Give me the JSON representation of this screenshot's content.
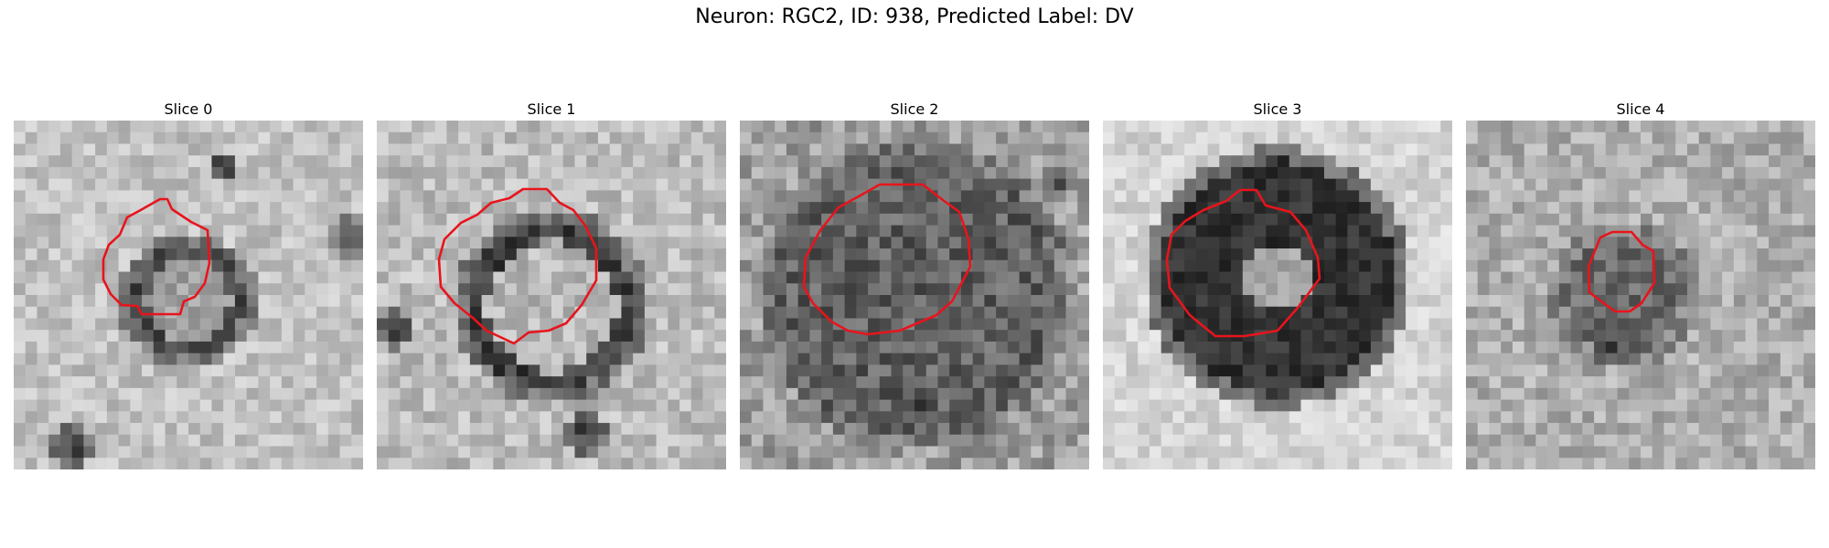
{
  "figure": {
    "suptitle": "Neuron: RGC2, ID: 938, Predicted Label: DV"
  },
  "colors": {
    "background": "#ffffff",
    "contour": "#e8141c",
    "colormap": "gray"
  },
  "panels": [
    {
      "title": "Slice 0",
      "content": "grayscale-microscopy-ring-cell",
      "roi_contour_color": "#e8141c"
    },
    {
      "title": "Slice 1",
      "content": "grayscale-microscopy-ring-cell-large",
      "roi_contour_color": "#e8141c"
    },
    {
      "title": "Slice 2",
      "content": "grayscale-microscopy-dark-cell",
      "roi_contour_color": "#e8141c"
    },
    {
      "title": "Slice 3",
      "content": "grayscale-microscopy-dark-cell-bright-base",
      "roi_contour_color": "#e8141c"
    },
    {
      "title": "Slice 4",
      "content": "grayscale-microscopy-faint-cell",
      "roi_contour_color": "#e8141c"
    }
  ]
}
